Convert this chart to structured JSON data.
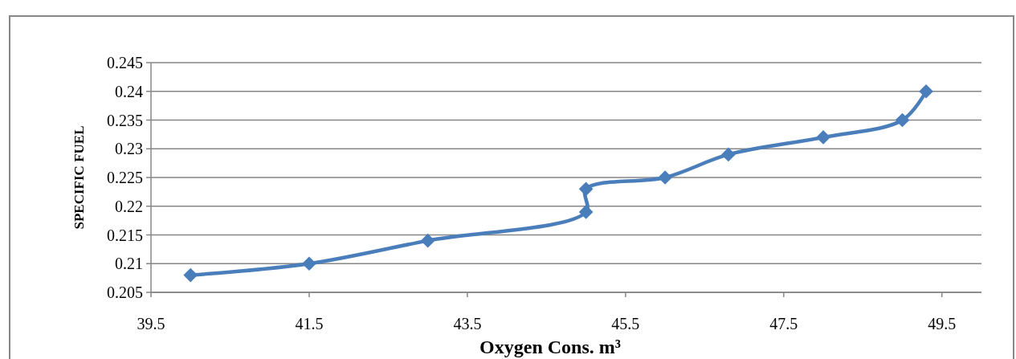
{
  "chart_data": {
    "type": "line",
    "xlabel": "Oxygen Cons. m³",
    "ylabel": "SPECIFIC FUEL",
    "x": [
      40,
      41.5,
      43,
      45,
      45,
      46,
      46.8,
      48,
      49,
      49.3
    ],
    "series": [
      {
        "color": "#4a7ebb",
        "values": [
          0.208,
          0.21,
          0.214,
          0.219,
          0.223,
          0.225,
          0.229,
          0.232,
          0.235,
          0.24
        ]
      }
    ],
    "xlim": [
      39.5,
      50
    ],
    "xticks": [
      39.5,
      41.5,
      43.5,
      45.5,
      47.5,
      49.5
    ],
    "ylim": [
      0.205,
      0.245
    ],
    "yticks": [
      0.205,
      0.21,
      0.215,
      0.22,
      0.225,
      0.23,
      0.235,
      0.24,
      0.245
    ],
    "grid": "y",
    "marker": "diamond",
    "line_style": "solid"
  }
}
